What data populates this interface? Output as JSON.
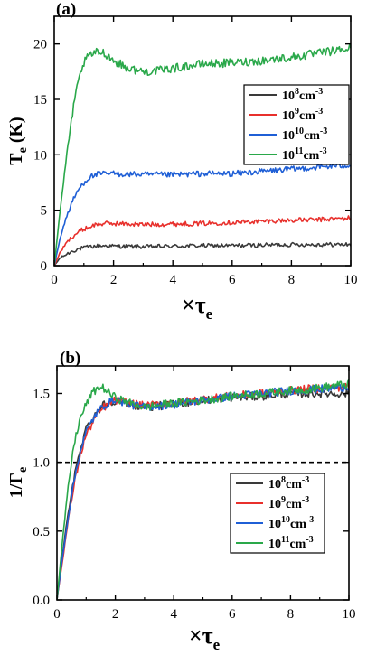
{
  "chart_data": [
    {
      "panel_label": "(a)",
      "type": "line",
      "xlabel_symbol": "×τ",
      "xlabel_sub": "e",
      "ylabel_symbol": "T",
      "ylabel_sub": "e",
      "ylabel_unit": " (K)",
      "xlim": [
        0,
        10
      ],
      "ylim": [
        0,
        22.5
      ],
      "xticks": [
        0,
        2,
        4,
        6,
        8,
        10
      ],
      "yticks": [
        0,
        5,
        10,
        15,
        20
      ],
      "grid": false,
      "legend_position": "right",
      "series": [
        {
          "name": "10",
          "exp": "8",
          "unit": "cm",
          "unit_exp": "-3",
          "color": "#3a3a3a",
          "x": [
            0,
            0.2,
            0.4,
            0.6,
            0.8,
            1.0,
            1.2,
            1.4,
            1.7,
            2.0,
            3.0,
            4.0,
            5.0,
            6.0,
            7.0,
            8.0,
            9.0,
            10.0
          ],
          "y": [
            0,
            0.7,
            1.0,
            1.3,
            1.5,
            1.6,
            1.7,
            1.75,
            1.8,
            1.75,
            1.7,
            1.75,
            1.8,
            1.8,
            1.85,
            1.9,
            1.9,
            1.9
          ]
        },
        {
          "name": "10",
          "exp": "9",
          "unit": "cm",
          "unit_exp": "-3",
          "color": "#e8302c",
          "x": [
            0,
            0.2,
            0.4,
            0.6,
            0.8,
            1.0,
            1.2,
            1.4,
            1.7,
            2.0,
            3.0,
            4.0,
            5.0,
            6.0,
            7.0,
            8.0,
            9.0,
            10.0
          ],
          "y": [
            0,
            1.2,
            2.0,
            2.6,
            3.0,
            3.3,
            3.5,
            3.7,
            3.8,
            3.8,
            3.7,
            3.75,
            3.8,
            3.9,
            4.0,
            4.1,
            4.15,
            4.3
          ]
        },
        {
          "name": "10",
          "exp": "10",
          "unit": "cm",
          "unit_exp": "-3",
          "color": "#1f5fd6",
          "x": [
            0,
            0.2,
            0.4,
            0.6,
            0.8,
            1.0,
            1.2,
            1.4,
            1.7,
            2.0,
            3.0,
            4.0,
            5.0,
            6.0,
            7.0,
            8.0,
            9.0,
            10.0
          ],
          "y": [
            0,
            2.5,
            4.3,
            5.7,
            6.8,
            7.5,
            8.0,
            8.2,
            8.3,
            8.3,
            8.2,
            8.2,
            8.3,
            8.3,
            8.5,
            8.7,
            8.9,
            9.1
          ]
        },
        {
          "name": "10",
          "exp": "11",
          "unit": "cm",
          "unit_exp": "-3",
          "color": "#2aa84a",
          "x": [
            0,
            0.2,
            0.4,
            0.6,
            0.8,
            1.0,
            1.2,
            1.4,
            1.6,
            1.8,
            2.0,
            2.5,
            3.0,
            3.5,
            4.0,
            5.0,
            6.0,
            7.0,
            8.0,
            9.0,
            10.0
          ],
          "y": [
            0,
            5.0,
            9.5,
            13.5,
            16.5,
            18.3,
            19.0,
            19.2,
            19.3,
            19.0,
            18.5,
            17.8,
            17.5,
            17.6,
            17.8,
            18.2,
            18.3,
            18.5,
            18.8,
            19.2,
            19.6
          ]
        }
      ]
    },
    {
      "panel_label": "(b)",
      "type": "line",
      "xlabel_symbol": "×τ",
      "xlabel_sub": "e",
      "ylabel_symbol": "1/Γ",
      "ylabel_sub": "e",
      "ylabel_unit": "",
      "xlim": [
        0,
        10
      ],
      "ylim": [
        0,
        1.7
      ],
      "xticks": [
        0,
        2,
        4,
        6,
        8,
        10
      ],
      "yticks": [
        0.0,
        0.5,
        1.0,
        1.5
      ],
      "ytick_labels": [
        "0.0",
        "0.5",
        "1.0",
        "1.5"
      ],
      "reference_line": {
        "y": 1.0,
        "style": "dashed"
      },
      "grid": false,
      "legend_position": "bottom-right",
      "series": [
        {
          "name": "10",
          "exp": "8",
          "unit": "cm",
          "unit_exp": "-3",
          "color": "#3a3a3a",
          "x": [
            0,
            0.2,
            0.4,
            0.6,
            0.8,
            1.0,
            1.3,
            1.6,
            2.0,
            2.5,
            3.0,
            4.0,
            5.0,
            6.0,
            7.0,
            8.0,
            9.0,
            10.0
          ],
          "y": [
            0,
            0.35,
            0.65,
            0.9,
            1.1,
            1.25,
            1.35,
            1.42,
            1.45,
            1.42,
            1.4,
            1.42,
            1.45,
            1.47,
            1.48,
            1.5,
            1.5,
            1.5
          ]
        },
        {
          "name": "10",
          "exp": "9",
          "unit": "cm",
          "unit_exp": "-3",
          "color": "#e8302c",
          "x": [
            0,
            0.2,
            0.4,
            0.6,
            0.8,
            1.0,
            1.3,
            1.6,
            2.0,
            2.5,
            3.0,
            4.0,
            5.0,
            6.0,
            7.0,
            8.0,
            9.0,
            10.0
          ],
          "y": [
            0,
            0.3,
            0.6,
            0.85,
            1.05,
            1.2,
            1.32,
            1.4,
            1.45,
            1.43,
            1.41,
            1.43,
            1.46,
            1.48,
            1.5,
            1.52,
            1.54,
            1.55
          ]
        },
        {
          "name": "10",
          "exp": "10",
          "unit": "cm",
          "unit_exp": "-3",
          "color": "#1f5fd6",
          "x": [
            0,
            0.2,
            0.4,
            0.6,
            0.8,
            1.0,
            1.3,
            1.6,
            2.0,
            2.5,
            3.0,
            4.0,
            5.0,
            6.0,
            7.0,
            8.0,
            9.0,
            10.0
          ],
          "y": [
            0,
            0.33,
            0.62,
            0.88,
            1.08,
            1.22,
            1.34,
            1.41,
            1.46,
            1.42,
            1.4,
            1.42,
            1.45,
            1.48,
            1.5,
            1.52,
            1.53,
            1.55
          ]
        },
        {
          "name": "10",
          "exp": "11",
          "unit": "cm",
          "unit_exp": "-3",
          "color": "#2aa84a",
          "x": [
            0,
            0.2,
            0.4,
            0.6,
            0.8,
            1.0,
            1.2,
            1.4,
            1.6,
            1.8,
            2.0,
            2.5,
            3.0,
            4.0,
            5.0,
            6.0,
            7.0,
            8.0,
            9.0,
            10.0
          ],
          "y": [
            0,
            0.45,
            0.85,
            1.15,
            1.32,
            1.42,
            1.5,
            1.54,
            1.54,
            1.5,
            1.47,
            1.43,
            1.4,
            1.43,
            1.45,
            1.48,
            1.5,
            1.52,
            1.54,
            1.57
          ]
        }
      ]
    }
  ]
}
